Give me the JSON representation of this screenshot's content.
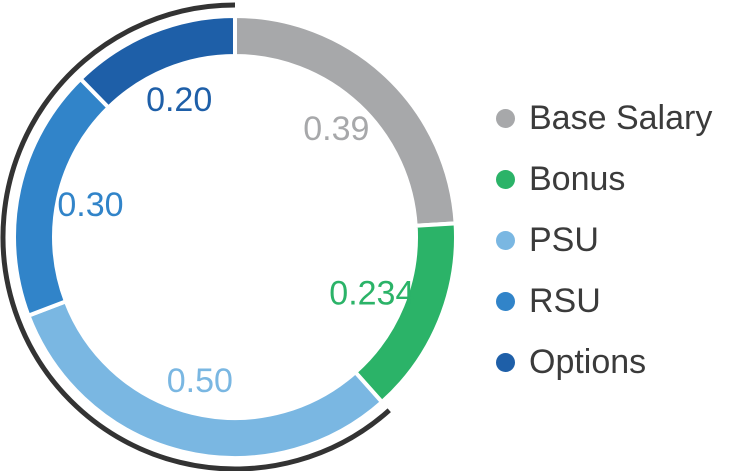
{
  "chart_data": {
    "type": "pie",
    "style": "donut",
    "categories": [
      "Base Salary",
      "Bonus",
      "PSU",
      "RSU",
      "Options"
    ],
    "values": [
      0.39,
      0.234,
      0.5,
      0.3,
      0.2
    ],
    "data_labels": [
      "0.39",
      "0.234",
      "0.50",
      "0.30",
      "0.20"
    ],
    "colors": [
      "#a7a8aa",
      "#2bb368",
      "#7ab7e2",
      "#3184c9",
      "#1e5fa8"
    ],
    "bracket_arc": {
      "covers": [
        "PSU",
        "RSU",
        "Options"
      ],
      "color": "#333333"
    },
    "legend": {
      "position": "right",
      "entries": [
        "Base Salary",
        "Bonus",
        "PSU",
        "RSU",
        "Options"
      ]
    }
  }
}
